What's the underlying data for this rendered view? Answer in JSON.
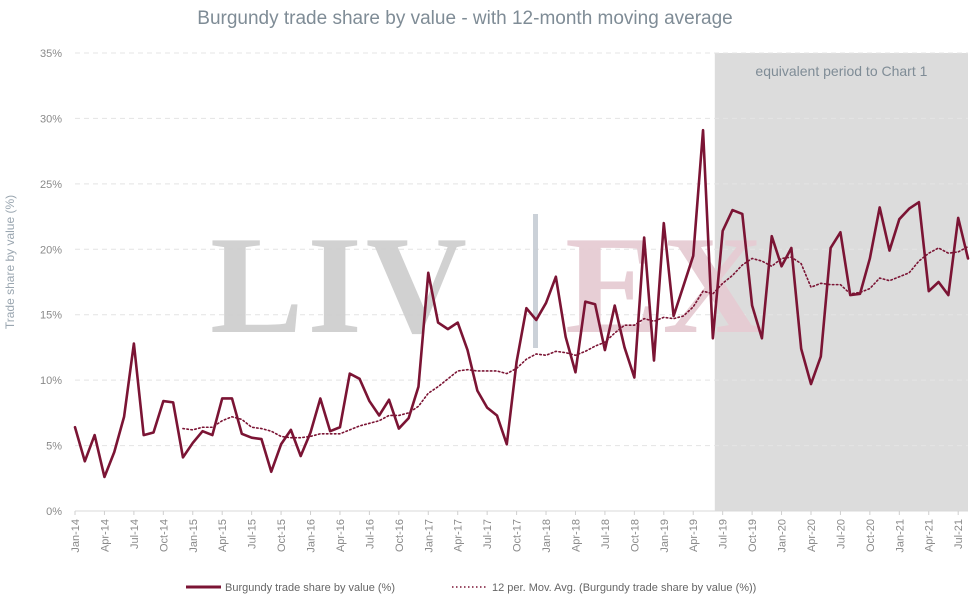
{
  "chart_data": {
    "type": "line",
    "title": "Burgundy trade share by value - with 12-month moving average",
    "ylabel": "Trade share by value (%)",
    "xlabel": "",
    "ylim": [
      0,
      35
    ],
    "y_ticks": [
      "0%",
      "5%",
      "10%",
      "15%",
      "20%",
      "25%",
      "30%",
      "35%"
    ],
    "grid": true,
    "legend_position": "bottom",
    "x": [
      "Jan-14",
      "Feb-14",
      "Mar-14",
      "Apr-14",
      "May-14",
      "Jun-14",
      "Jul-14",
      "Aug-14",
      "Sep-14",
      "Oct-14",
      "Nov-14",
      "Dec-14",
      "Jan-15",
      "Feb-15",
      "Mar-15",
      "Apr-15",
      "May-15",
      "Jun-15",
      "Jul-15",
      "Aug-15",
      "Sep-15",
      "Oct-15",
      "Nov-15",
      "Dec-15",
      "Jan-16",
      "Feb-16",
      "Mar-16",
      "Apr-16",
      "May-16",
      "Jun-16",
      "Jul-16",
      "Aug-16",
      "Sep-16",
      "Oct-16",
      "Nov-16",
      "Dec-16",
      "Jan-17",
      "Feb-17",
      "Mar-17",
      "Apr-17",
      "May-17",
      "Jun-17",
      "Jul-17",
      "Aug-17",
      "Sep-17",
      "Oct-17",
      "Nov-17",
      "Dec-17",
      "Jan-18",
      "Feb-18",
      "Mar-18",
      "Apr-18",
      "May-18",
      "Jun-18",
      "Jul-18",
      "Aug-18",
      "Sep-18",
      "Oct-18",
      "Nov-18",
      "Dec-18",
      "Jan-19",
      "Feb-19",
      "Mar-19",
      "Apr-19",
      "May-19",
      "Jun-19",
      "Jul-19",
      "Aug-19",
      "Sep-19",
      "Oct-19",
      "Nov-19",
      "Dec-19",
      "Jan-20",
      "Feb-20",
      "Mar-20",
      "Apr-20",
      "May-20",
      "Jun-20",
      "Jul-20",
      "Aug-20",
      "Sep-20",
      "Oct-20",
      "Nov-20",
      "Dec-20",
      "Jan-21",
      "Feb-21",
      "Mar-21",
      "Apr-21",
      "May-21",
      "Jun-21",
      "Jul-21",
      "Aug-21"
    ],
    "x_tick_labels": [
      "Jan-14",
      "Apr-14",
      "Jul-14",
      "Oct-14",
      "Jan-15",
      "Apr-15",
      "Jul-15",
      "Oct-15",
      "Jan-16",
      "Apr-16",
      "Jul-16",
      "Oct-16",
      "Jan-17",
      "Apr-17",
      "Jul-17",
      "Oct-17",
      "Jan-18",
      "Apr-18",
      "Jul-18",
      "Oct-18",
      "Jan-19",
      "Apr-19",
      "Jul-19",
      "Oct-19",
      "Jan-20",
      "Apr-20",
      "Jul-20",
      "Oct-20",
      "Jan-21",
      "Apr-21",
      "Jul-21"
    ],
    "series": [
      {
        "name": "Burgundy trade share by value (%)",
        "style": "solid",
        "color": "#7b1434",
        "values": [
          6.4,
          3.8,
          5.8,
          2.6,
          4.5,
          7.2,
          12.8,
          5.8,
          6.0,
          8.4,
          8.3,
          4.1,
          5.2,
          6.1,
          5.8,
          8.6,
          8.6,
          5.9,
          5.6,
          5.5,
          3.0,
          5.1,
          6.2,
          4.2,
          6.0,
          8.6,
          6.1,
          6.4,
          10.5,
          10.1,
          8.4,
          7.3,
          8.5,
          6.3,
          7.1,
          9.5,
          18.2,
          14.4,
          13.9,
          14.4,
          12.3,
          9.2,
          7.9,
          7.3,
          5.1,
          11.4,
          15.5,
          14.6,
          15.9,
          17.9,
          13.3,
          10.6,
          16.0,
          15.8,
          12.3,
          15.7,
          12.5,
          10.2,
          20.9,
          11.5,
          22.0,
          14.9,
          17.2,
          19.5,
          29.1,
          13.2,
          21.4,
          23.0,
          22.7,
          15.7,
          13.2,
          21.0,
          18.7,
          20.1,
          12.4,
          9.7,
          11.8,
          20.1,
          21.3,
          16.5,
          16.6,
          19.3,
          23.2,
          19.9,
          22.3,
          23.1,
          23.6,
          16.8,
          17.5,
          16.5,
          22.4,
          19.3
        ]
      },
      {
        "name": "12 per. Mov. Avg. (Burgundy trade share by value (%))",
        "style": "dotted",
        "color": "#7b1434",
        "values": [
          null,
          null,
          null,
          null,
          null,
          null,
          null,
          null,
          null,
          null,
          null,
          6.3,
          6.2,
          6.4,
          6.4,
          6.9,
          7.2,
          7.0,
          6.4,
          6.3,
          6.1,
          5.7,
          5.6,
          5.6,
          5.7,
          5.9,
          5.9,
          5.9,
          6.2,
          6.5,
          6.7,
          6.9,
          7.3,
          7.3,
          7.5,
          8.0,
          9.0,
          9.5,
          10.1,
          10.7,
          10.8,
          10.7,
          10.7,
          10.7,
          10.5,
          10.9,
          11.6,
          12.0,
          11.9,
          12.2,
          12.1,
          11.9,
          12.2,
          12.6,
          12.9,
          13.6,
          14.2,
          14.2,
          14.7,
          14.5,
          14.8,
          14.7,
          14.9,
          15.6,
          16.8,
          16.6,
          17.4,
          18.0,
          18.8,
          19.3,
          19.1,
          18.7,
          19.3,
          19.4,
          18.9,
          17.1,
          17.4,
          17.3,
          17.3,
          16.6,
          16.7,
          17.0,
          17.8,
          17.6,
          17.9,
          18.2,
          19.1,
          19.7,
          20.1,
          19.7,
          19.8,
          20.2
        ]
      }
    ],
    "shaded_region": {
      "from": "Jun-19",
      "to": "Aug-21",
      "label": "equivalent period to Chart 1",
      "color": "#dcdcdc"
    },
    "watermark": "LIV|EX"
  }
}
